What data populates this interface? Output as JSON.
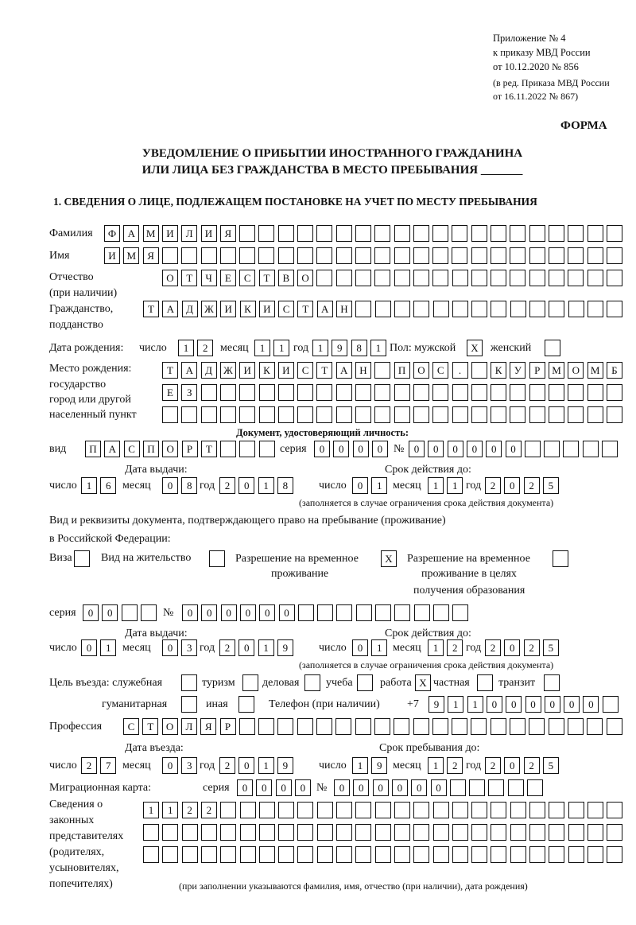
{
  "header": {
    "appendix": "Приложение № 4",
    "order": "к приказу МВД России",
    "order_date": "от 10.12.2020 № 856",
    "edition": "(в ред. Приказа МВД России",
    "edition_date": "от 16.11.2022 № 867)",
    "form_label": "ФОРМА",
    "title_line1": "УВЕДОМЛЕНИЕ О ПРИБЫТИИ ИНОСТРАННОГО ГРАЖДАНИНА",
    "title_line2": "ИЛИ ЛИЦА БЕЗ ГРАЖДАНСТВА В МЕСТО ПРЕБЫВАНИЯ _______"
  },
  "section1": {
    "heading": "1. СВЕДЕНИЯ О ЛИЦЕ, ПОДЛЕЖАЩЕМ ПОСТАНОВКЕ НА УЧЕТ ПО МЕСТУ ПРЕБЫВАНИЯ",
    "labels": {
      "surname": "Фамилия",
      "name": "Имя",
      "patronymic": "Отчество",
      "patronymic_note": "(при наличии)",
      "citizenship": "Гражданство,",
      "citizenship2": "подданство",
      "birth_date": "Дата рождения:",
      "day": "число",
      "month": "месяц",
      "year": "год",
      "sex_male": "Пол: мужской",
      "sex_female": "женский",
      "birth_place": "Место рождения:",
      "birth_place2": "государство",
      "birth_place3": "город или другой",
      "birth_place4": "населенный пункт",
      "id_doc": "Документ, удостоверяющий личность:",
      "kind": "вид",
      "series": "серия",
      "number": "№",
      "issue_date": "Дата выдачи:",
      "valid_until": "Срок действия до:",
      "valid_note": "(заполняется в случае ограничения срока действия документа)",
      "stay_doc1": "Вид и реквизиты документа, подтверждающего право на пребывание (проживание)",
      "stay_doc2": "в Российской Федерации:",
      "visa": "Виза",
      "residence": "Вид на жительство",
      "trp1": "Разрешение на временное",
      "trp2": "проживание",
      "trp_edu1": "Разрешение на временное",
      "trp_edu2": "проживание в целях",
      "trp_edu3": "получения образования",
      "purpose": "Цель въезда: служебная",
      "tourism": "туризм",
      "business": "деловая",
      "study": "учеба",
      "work": "работа",
      "private": "частная",
      "transit": "транзит",
      "humanitarian": "гуманитарная",
      "other": "иная",
      "phone": "Телефон (при наличии)",
      "phone_prefix": "+7",
      "profession": "Профессия",
      "entry_date": "Дата въезда:",
      "stay_until": "Срок пребывания до:",
      "migration_card": "Миграционная карта:",
      "reps1": "Сведения о",
      "reps2": "законных",
      "reps3": "представителях",
      "reps4": "(родителях,",
      "reps5": "усыновителях,",
      "reps6": "попечителях)",
      "reps_note": "(при заполнении указываются фамилия, имя, отчество (при наличии), дата рождения)"
    },
    "values": {
      "surname": "ФАМИЛИЯ",
      "name": "ИМЯ",
      "patronymic": "ОТЧЕСТВО",
      "citizenship": "ТАДЖИКИСТАН",
      "birth_day": "12",
      "birth_month": "11",
      "birth_year": "1981",
      "male": "X",
      "female": "",
      "birth_place_1": "ТАДЖИКИСТАН ПОС. КУРМОМБ",
      "birth_place_2": "ЕЗ",
      "birth_place_3": "",
      "id_kind": "ПАСПОРТ",
      "id_series": "0000",
      "id_number": "000000",
      "id_issue_day": "16",
      "id_issue_month": "08",
      "id_issue_year": "2018",
      "id_valid_day": "01",
      "id_valid_month": "11",
      "id_valid_year": "2025",
      "visa": "",
      "residence": "",
      "trp": "X",
      "trp_edu": "",
      "stay_series": "00",
      "stay_number": "000000",
      "stay_issue_day": "01",
      "stay_issue_month": "03",
      "stay_issue_year": "2019",
      "stay_valid_day": "01",
      "stay_valid_month": "12",
      "stay_valid_year": "2025",
      "p_service": "",
      "p_tourism": "",
      "p_business": "",
      "p_study": "",
      "p_work": "X",
      "p_private": "",
      "p_transit": "",
      "p_humanitarian": "",
      "p_other": "",
      "phone": "911000000",
      "profession": "СТОЛЯР",
      "entry_day": "27",
      "entry_month": "03",
      "entry_year": "2019",
      "until_day": "19",
      "until_month": "12",
      "until_year": "2025",
      "mc_series": "0000",
      "mc_number": "000000",
      "reps_1": "1122",
      "reps_2": "",
      "reps_3": ""
    }
  }
}
